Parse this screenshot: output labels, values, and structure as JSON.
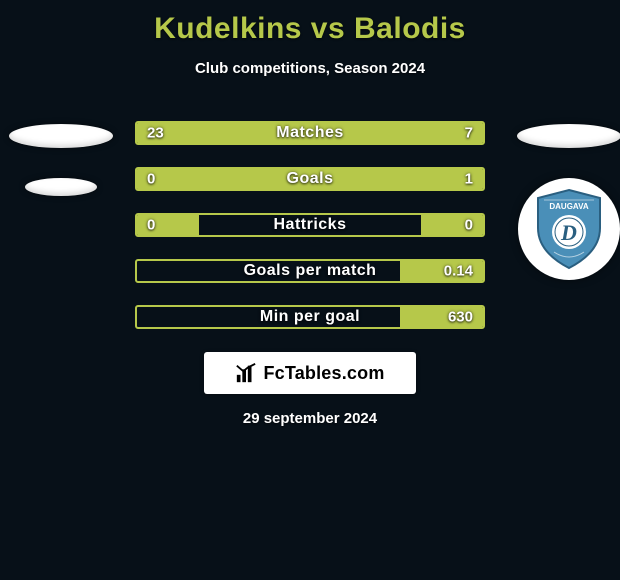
{
  "title": "Kudelkins vs Balodis",
  "subtitle": "Club competitions, Season 2024",
  "footer_date": "29 september 2024",
  "watermark_text": "FcTables.com",
  "colors": {
    "background": "#071018",
    "accent": "#b6c84a",
    "text": "#ffffff",
    "crest_primary": "#4a8fb8",
    "crest_secondary": "#2a5f80",
    "crest_text": "#ffffff"
  },
  "bars": [
    {
      "label": "Matches",
      "left": "23",
      "right": "7",
      "left_pct": 73,
      "right_pct": 27
    },
    {
      "label": "Goals",
      "left": "0",
      "right": "1",
      "left_pct": 18,
      "right_pct": 100
    },
    {
      "label": "Hattricks",
      "left": "0",
      "right": "0",
      "left_pct": 18,
      "right_pct": 18
    },
    {
      "label": "Goals per match",
      "left": "",
      "right": "0.14",
      "left_pct": 0,
      "right_pct": 24
    },
    {
      "label": "Min per goal",
      "left": "",
      "right": "630",
      "left_pct": 0,
      "right_pct": 24
    }
  ],
  "left_badges": {
    "type": "ellipse-pair"
  },
  "right_badges": {
    "type": "ellipse-plus-crest",
    "crest_text": "DAUGAVA",
    "crest_letter": "D"
  }
}
